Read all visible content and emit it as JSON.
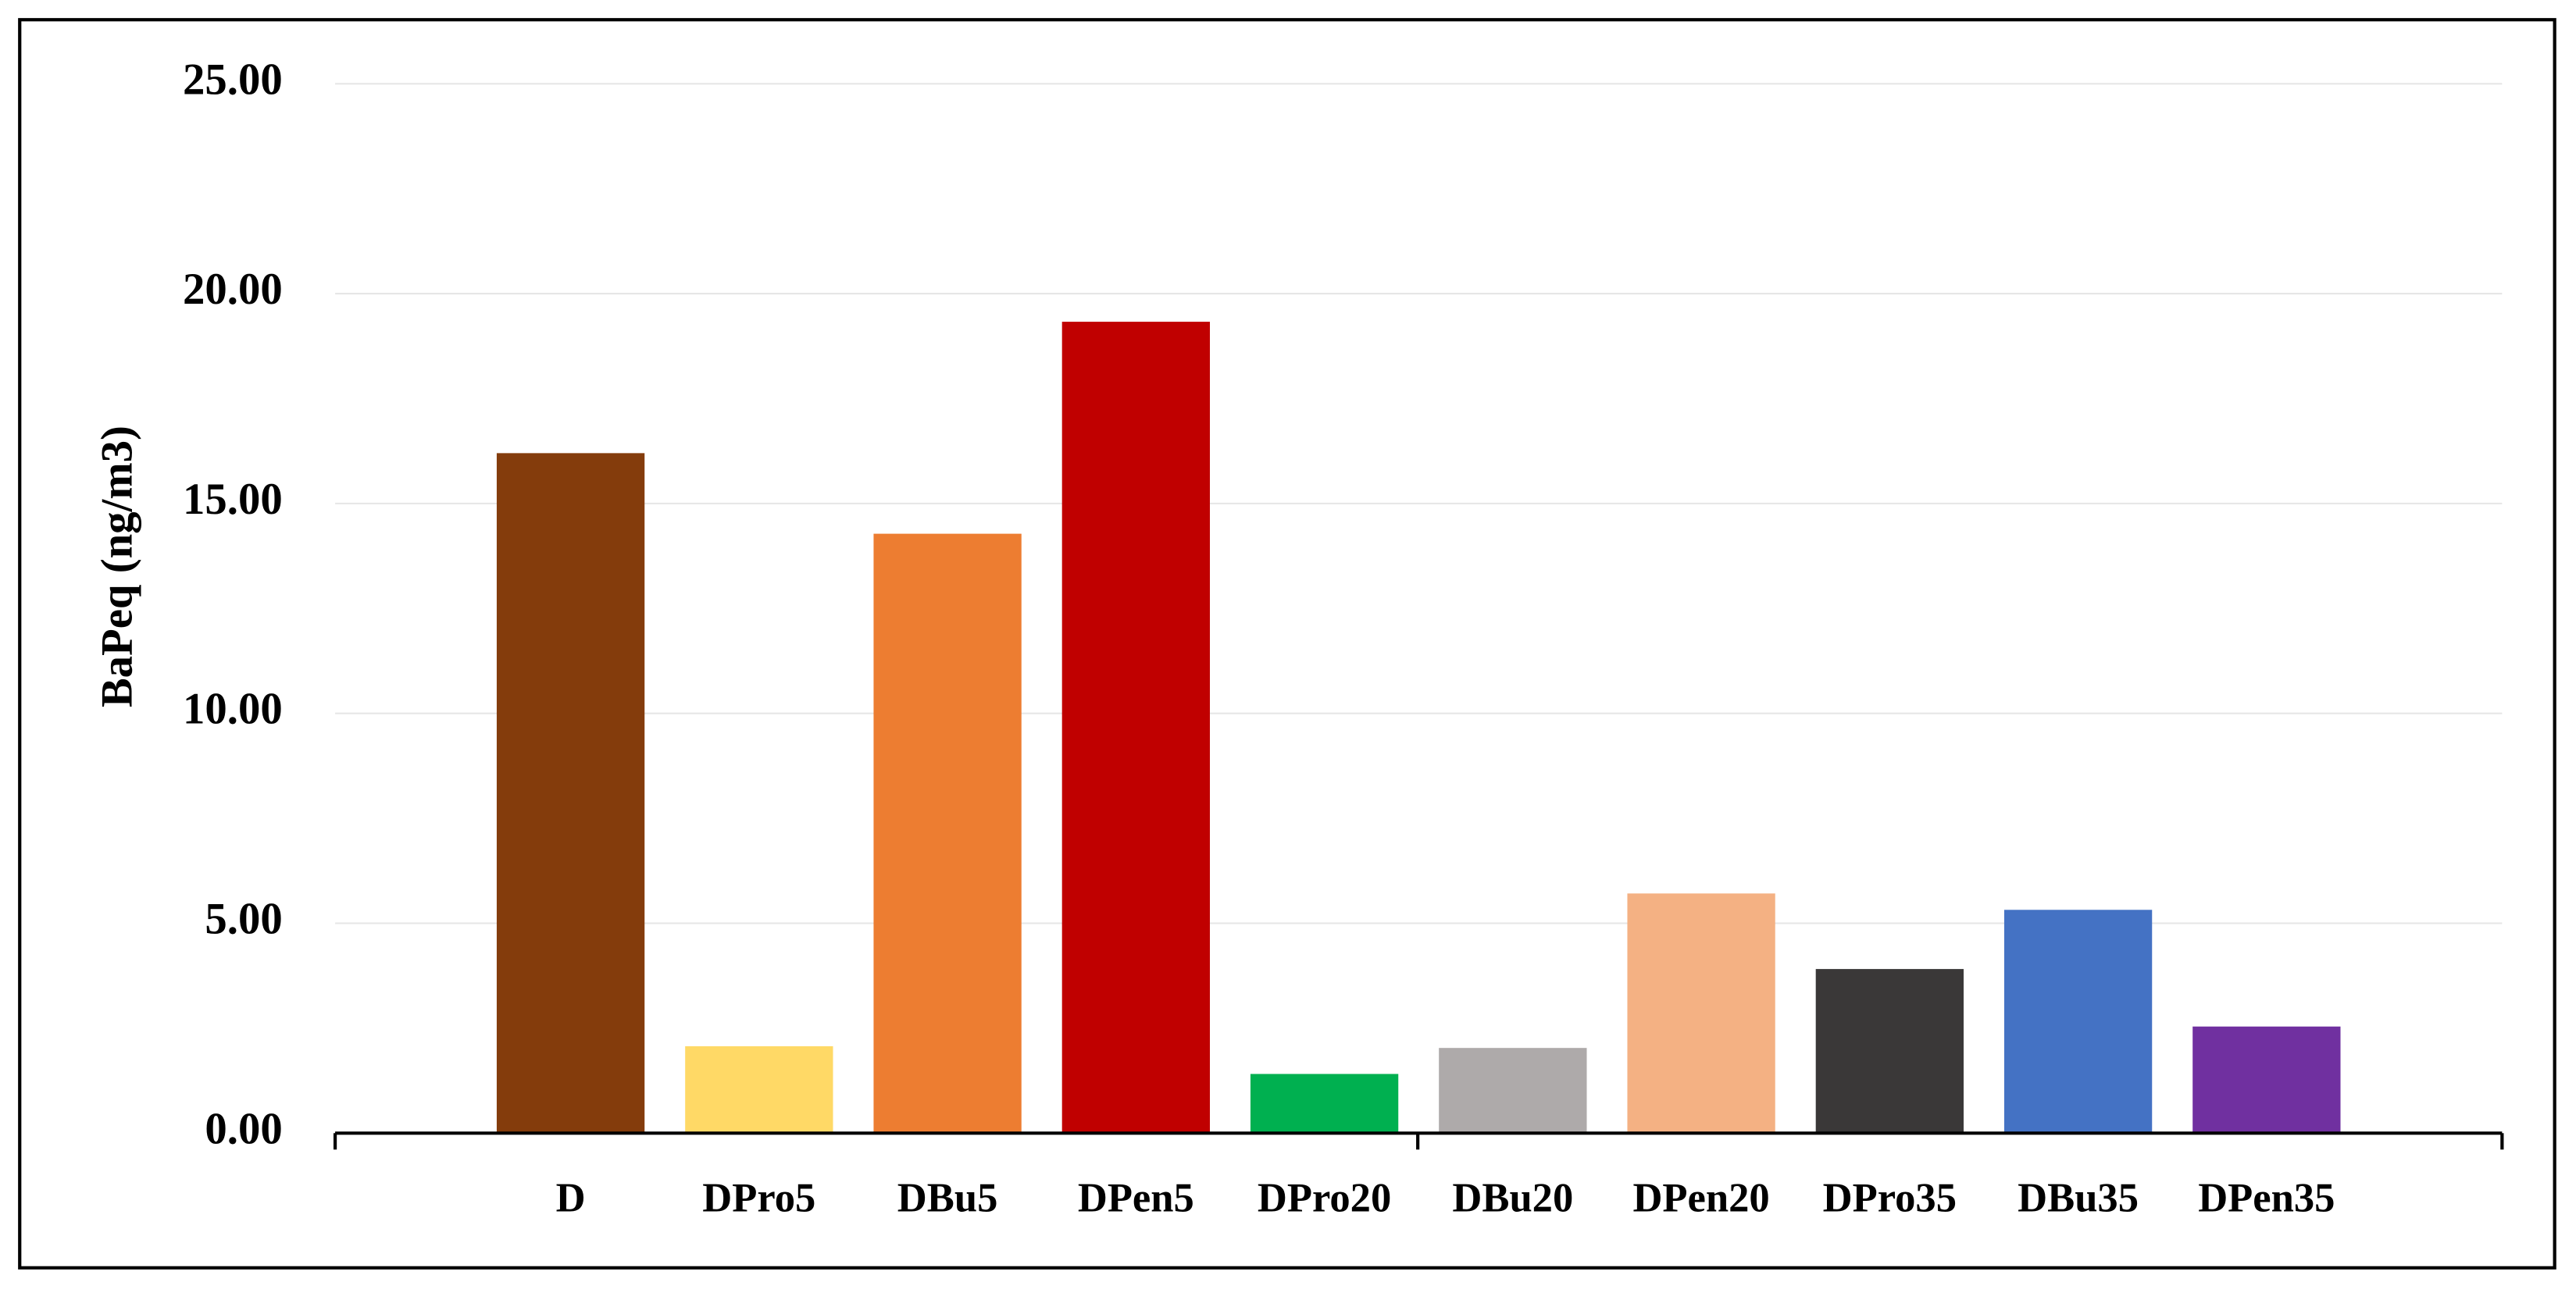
{
  "chart_data": {
    "type": "bar",
    "ylabel": "BaPeq (ng/m3)",
    "categories": [
      "D",
      "DPro5",
      "DBu5",
      "DPen5",
      "DPro20",
      "DBu20",
      "DPen20",
      "DPro35",
      "DBu35",
      "DPen35"
    ],
    "values": [
      16.2,
      2.07,
      14.28,
      19.33,
      1.41,
      2.03,
      5.71,
      3.91,
      5.32,
      2.54
    ],
    "colors": [
      "#843C0C",
      "#FFD966",
      "#ED7D31",
      "#C00000",
      "#00B050",
      "#AEAAAA",
      "#F4B183",
      "#3A3838",
      "#4472C4",
      "#7030A0"
    ],
    "ylim": [
      0,
      25
    ],
    "yticks": [
      {
        "value": 0,
        "label": "0.00"
      },
      {
        "value": 5,
        "label": "5.00"
      },
      {
        "value": 10,
        "label": "10.00"
      },
      {
        "value": 15,
        "label": "15.00"
      },
      {
        "value": 20,
        "label": "20.00"
      },
      {
        "value": 25,
        "label": "25.00"
      }
    ],
    "grid": true
  }
}
